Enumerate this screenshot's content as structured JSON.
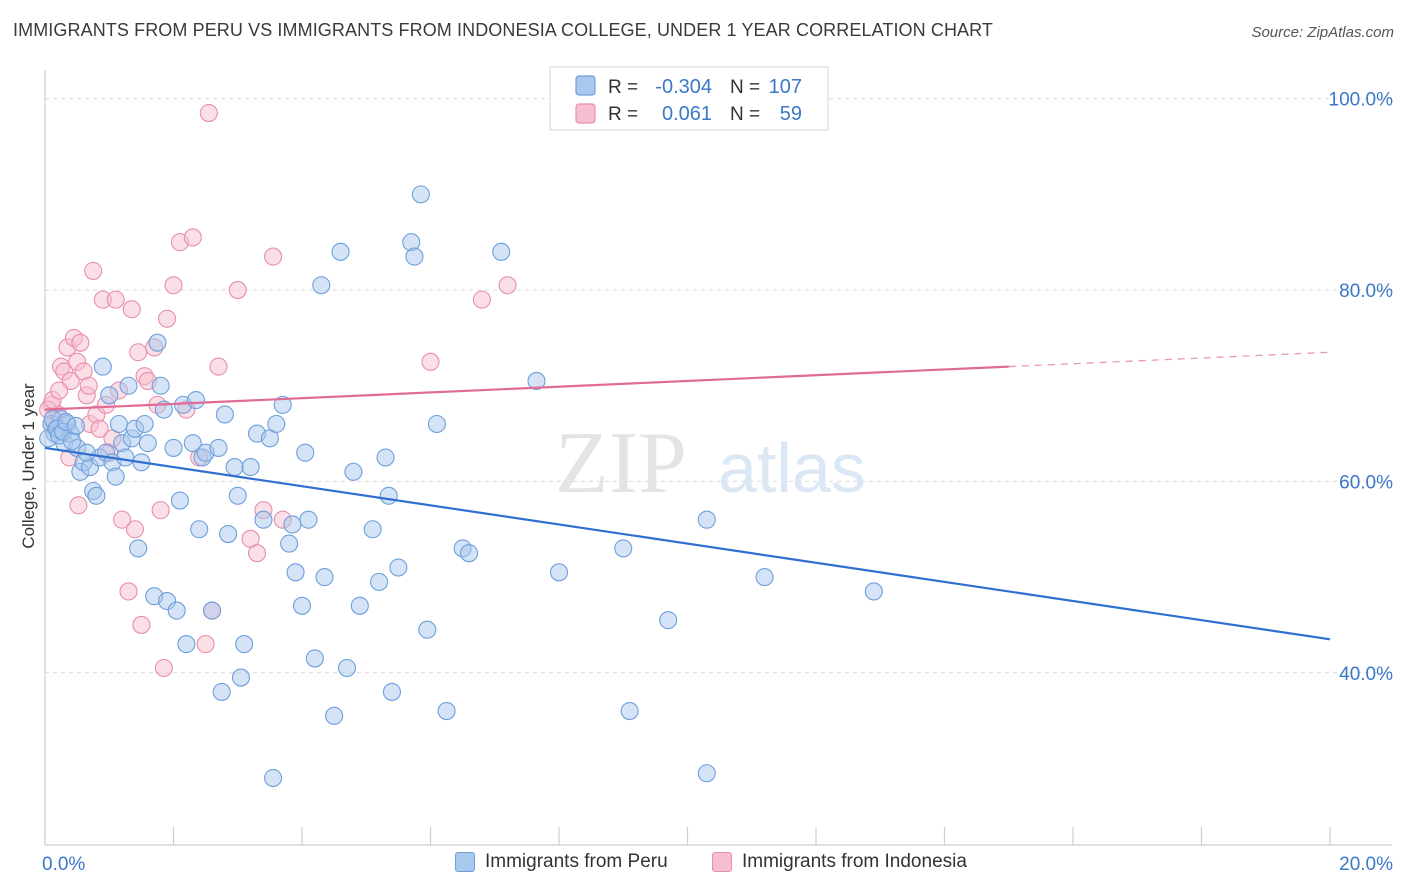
{
  "title": "IMMIGRANTS FROM PERU VS IMMIGRANTS FROM INDONESIA COLLEGE, UNDER 1 YEAR CORRELATION CHART",
  "source": "Source: ZipAtlas.com",
  "watermark": {
    "zip": "ZIP",
    "atlas": "atlas"
  },
  "colors": {
    "peru_fill": "#a9c8ee",
    "peru_stroke": "#6e9fdc",
    "peru_line": "#2f6fd0",
    "indonesia_fill": "#f6bfd0",
    "indonesia_stroke": "#e88fab",
    "indonesia_line": "#e06b95",
    "value_text": "#3a78c9",
    "grid": "#d9d9d9"
  },
  "legend_top": {
    "rows": [
      {
        "r_label": "R =",
        "r_value": "-0.304",
        "n_label": "N =",
        "n_value": "107",
        "series": "peru"
      },
      {
        "r_label": "R =",
        "r_value": "0.061",
        "n_label": "N =",
        "n_value": "59",
        "series": "indonesia"
      }
    ]
  },
  "legend_bottom": [
    {
      "label": "Immigrants from Peru",
      "series": "peru"
    },
    {
      "label": "Immigrants from Indonesia",
      "series": "indonesia"
    }
  ],
  "chart_data": {
    "type": "scatter",
    "title": "IMMIGRANTS FROM PERU VS IMMIGRANTS FROM INDONESIA COLLEGE, UNDER 1 YEAR CORRELATION CHART",
    "xlabel": "",
    "ylabel": "College, Under 1 year",
    "xlim": [
      0,
      20
    ],
    "ylim": [
      22,
      103
    ],
    "x_tick_labels": [
      {
        "value": 0,
        "label": "0.0%"
      },
      {
        "value": 20,
        "label": "20.0%"
      }
    ],
    "y_tick_labels": [
      {
        "value": 100,
        "label": "100.0%"
      },
      {
        "value": 80,
        "label": "80.0%"
      },
      {
        "value": 60,
        "label": "60.0%"
      },
      {
        "value": 40,
        "label": "40.0%"
      }
    ],
    "grid": true,
    "legend_position": "top-center",
    "series": [
      {
        "name": "Immigrants from Peru",
        "key": "peru",
        "r": -0.304,
        "n": 107,
        "trend": {
          "x": [
            0,
            20
          ],
          "y": [
            63.5,
            43.5
          ],
          "dashed_from": null
        },
        "points": [
          [
            0.1,
            66
          ],
          [
            0.15,
            65
          ],
          [
            0.2,
            65.5
          ],
          [
            0.25,
            66.5
          ],
          [
            0.3,
            64
          ],
          [
            0.35,
            66
          ],
          [
            0.4,
            65
          ],
          [
            0.5,
            63.5
          ],
          [
            0.55,
            61
          ],
          [
            0.6,
            62
          ],
          [
            0.7,
            61.5
          ],
          [
            0.75,
            59
          ],
          [
            0.8,
            58.5
          ],
          [
            0.85,
            62.5
          ],
          [
            0.9,
            72
          ],
          [
            0.95,
            63
          ],
          [
            1.0,
            69
          ],
          [
            1.05,
            62
          ],
          [
            1.1,
            60.5
          ],
          [
            1.15,
            66
          ],
          [
            1.2,
            64
          ],
          [
            1.25,
            62.5
          ],
          [
            1.3,
            70
          ],
          [
            1.35,
            64.5
          ],
          [
            1.4,
            65.5
          ],
          [
            1.45,
            53
          ],
          [
            1.5,
            62
          ],
          [
            1.55,
            66
          ],
          [
            1.6,
            64
          ],
          [
            1.7,
            48
          ],
          [
            1.75,
            74.5
          ],
          [
            1.8,
            70
          ],
          [
            1.85,
            67.5
          ],
          [
            1.9,
            47.5
          ],
          [
            2.0,
            63.5
          ],
          [
            2.05,
            46.5
          ],
          [
            2.1,
            58
          ],
          [
            2.15,
            68
          ],
          [
            2.2,
            43
          ],
          [
            2.3,
            64
          ],
          [
            2.35,
            68.5
          ],
          [
            2.4,
            55
          ],
          [
            2.45,
            62.5
          ],
          [
            2.5,
            63
          ],
          [
            2.6,
            46.5
          ],
          [
            2.7,
            63.5
          ],
          [
            2.75,
            38
          ],
          [
            2.8,
            67
          ],
          [
            2.85,
            54.5
          ],
          [
            2.95,
            61.5
          ],
          [
            3.0,
            58.5
          ],
          [
            3.05,
            39.5
          ],
          [
            3.1,
            43
          ],
          [
            3.2,
            61.5
          ],
          [
            3.3,
            65
          ],
          [
            3.4,
            56
          ],
          [
            3.5,
            64.5
          ],
          [
            3.55,
            29
          ],
          [
            3.6,
            66
          ],
          [
            3.7,
            68
          ],
          [
            3.8,
            53.5
          ],
          [
            3.85,
            55.5
          ],
          [
            3.9,
            50.5
          ],
          [
            4.0,
            47
          ],
          [
            4.05,
            63
          ],
          [
            4.1,
            56
          ],
          [
            4.2,
            41.5
          ],
          [
            4.3,
            80.5
          ],
          [
            4.35,
            50
          ],
          [
            4.5,
            35.5
          ],
          [
            4.6,
            84
          ],
          [
            4.7,
            40.5
          ],
          [
            4.8,
            61
          ],
          [
            4.9,
            47
          ],
          [
            5.1,
            55
          ],
          [
            5.2,
            49.5
          ],
          [
            5.3,
            62.5
          ],
          [
            5.35,
            58.5
          ],
          [
            5.4,
            38
          ],
          [
            5.5,
            51
          ],
          [
            5.7,
            85
          ],
          [
            5.75,
            83.5
          ],
          [
            5.85,
            90
          ],
          [
            5.95,
            44.5
          ],
          [
            6.1,
            66
          ],
          [
            6.25,
            36
          ],
          [
            6.5,
            53
          ],
          [
            6.6,
            52.5
          ],
          [
            7.1,
            84
          ],
          [
            7.65,
            70.5
          ],
          [
            8.0,
            50.5
          ],
          [
            9.0,
            53
          ],
          [
            9.1,
            36
          ],
          [
            9.7,
            45.5
          ],
          [
            10.3,
            56
          ],
          [
            10.3,
            29.5
          ],
          [
            11.2,
            50
          ],
          [
            12.9,
            48.5
          ],
          [
            0.05,
            64.5
          ],
          [
            0.12,
            66.5
          ],
          [
            0.18,
            65.5
          ],
          [
            0.22,
            64.8
          ],
          [
            0.28,
            65.2
          ],
          [
            0.33,
            66.2
          ],
          [
            0.42,
            64.2
          ],
          [
            0.48,
            65.8
          ],
          [
            0.65,
            63
          ]
        ]
      },
      {
        "name": "Immigrants from Indonesia",
        "key": "indonesia",
        "r": 0.061,
        "n": 59,
        "trend": {
          "x": [
            0,
            20
          ],
          "y": [
            67.5,
            73.5
          ],
          "dashed_from": 15
        },
        "points": [
          [
            0.1,
            68
          ],
          [
            0.15,
            66
          ],
          [
            0.2,
            67
          ],
          [
            0.25,
            72
          ],
          [
            0.3,
            71.5
          ],
          [
            0.35,
            74
          ],
          [
            0.4,
            70.5
          ],
          [
            0.45,
            75
          ],
          [
            0.5,
            72.5
          ],
          [
            0.55,
            74.5
          ],
          [
            0.6,
            71.5
          ],
          [
            0.65,
            69
          ],
          [
            0.7,
            66
          ],
          [
            0.75,
            82
          ],
          [
            0.8,
            67
          ],
          [
            0.85,
            65.5
          ],
          [
            0.9,
            79
          ],
          [
            0.95,
            68
          ],
          [
            1.0,
            63
          ],
          [
            1.05,
            64.5
          ],
          [
            1.1,
            79
          ],
          [
            1.15,
            69.5
          ],
          [
            1.2,
            56
          ],
          [
            1.3,
            48.5
          ],
          [
            1.35,
            78
          ],
          [
            1.4,
            55
          ],
          [
            1.45,
            73.5
          ],
          [
            1.5,
            45
          ],
          [
            1.55,
            71
          ],
          [
            1.6,
            70.5
          ],
          [
            1.7,
            74
          ],
          [
            1.75,
            68
          ],
          [
            1.8,
            57
          ],
          [
            1.85,
            40.5
          ],
          [
            1.9,
            77
          ],
          [
            2.0,
            80.5
          ],
          [
            2.1,
            85
          ],
          [
            2.2,
            67.5
          ],
          [
            2.3,
            85.5
          ],
          [
            2.4,
            62.5
          ],
          [
            2.5,
            43
          ],
          [
            2.55,
            98.5
          ],
          [
            2.6,
            46.5
          ],
          [
            2.7,
            72
          ],
          [
            3.0,
            80
          ],
          [
            3.2,
            54
          ],
          [
            3.3,
            52.5
          ],
          [
            3.4,
            57
          ],
          [
            3.55,
            83.5
          ],
          [
            3.7,
            56
          ],
          [
            6.0,
            72.5
          ],
          [
            6.8,
            79
          ],
          [
            7.2,
            80.5
          ],
          [
            0.05,
            67.5
          ],
          [
            0.12,
            68.5
          ],
          [
            0.22,
            69.5
          ],
          [
            0.38,
            62.5
          ],
          [
            0.52,
            57.5
          ],
          [
            0.68,
            70
          ]
        ]
      }
    ]
  }
}
